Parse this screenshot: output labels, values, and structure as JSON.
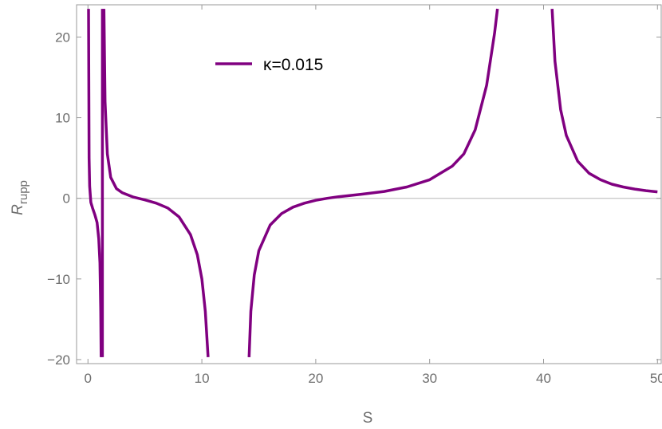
{
  "chart_data": {
    "type": "line",
    "xlabel": "S",
    "ylabel_main": "R",
    "ylabel_sub": "rupp",
    "xlim": [
      -1,
      50.4
    ],
    "ylim": [
      -20.5,
      24
    ],
    "x_ticks": [
      0,
      10,
      20,
      30,
      40,
      50
    ],
    "x_tick_labels": [
      "0",
      "10",
      "20",
      "30",
      "40",
      "50"
    ],
    "y_ticks": [
      -20,
      -10,
      0,
      10,
      20
    ],
    "y_tick_labels": [
      "−20",
      "−10",
      "0",
      "10",
      "20"
    ],
    "zero_line": true,
    "grid": false,
    "legend_position": "top-center",
    "series": [
      {
        "name": "κ=0.015",
        "color": "#800080",
        "segments": [
          [
            [
              0.05,
              23.5
            ],
            [
              0.1,
              5
            ],
            [
              0.15,
              1.5
            ],
            [
              0.25,
              -0.5
            ],
            [
              0.4,
              -1.2
            ],
            [
              0.6,
              -2.0
            ],
            [
              0.8,
              -3.0
            ],
            [
              0.95,
              -5.0
            ],
            [
              1.05,
              -8.0
            ],
            [
              1.12,
              -14.0
            ],
            [
              1.16,
              -19.7
            ]
          ],
          [
            [
              1.27,
              -19.7
            ],
            [
              1.27,
              0
            ],
            [
              1.27,
              23.5
            ]
          ],
          [
            [
              1.4,
              23.5
            ],
            [
              1.5,
              12.0
            ],
            [
              1.7,
              5.5
            ],
            [
              2.0,
              2.6
            ],
            [
              2.5,
              1.2
            ],
            [
              3.0,
              0.7
            ],
            [
              4.0,
              0.15
            ],
            [
              5.0,
              -0.2
            ],
            [
              6.0,
              -0.6
            ],
            [
              7.0,
              -1.2
            ],
            [
              8.0,
              -2.3
            ],
            [
              9.0,
              -4.5
            ],
            [
              9.6,
              -7.0
            ],
            [
              10.0,
              -10.0
            ],
            [
              10.3,
              -14.0
            ],
            [
              10.55,
              -19.7
            ]
          ],
          [
            [
              14.15,
              -19.7
            ],
            [
              14.3,
              -14.0
            ],
            [
              14.6,
              -9.5
            ],
            [
              15.0,
              -6.5
            ],
            [
              16.0,
              -3.3
            ],
            [
              17.0,
              -1.9
            ],
            [
              18.0,
              -1.1
            ],
            [
              19.0,
              -0.6
            ],
            [
              20.0,
              -0.25
            ],
            [
              21.0,
              0.0
            ],
            [
              22.0,
              0.2
            ],
            [
              24.0,
              0.5
            ],
            [
              26.0,
              0.85
            ],
            [
              28.0,
              1.4
            ],
            [
              30.0,
              2.3
            ],
            [
              32.0,
              4.0
            ],
            [
              33.0,
              5.5
            ],
            [
              34.0,
              8.5
            ],
            [
              35.0,
              14.0
            ],
            [
              35.7,
              20.5
            ],
            [
              35.95,
              23.5
            ]
          ],
          [
            [
              40.75,
              23.5
            ],
            [
              41.0,
              17.0
            ],
            [
              41.5,
              11.0
            ],
            [
              42.0,
              7.8
            ],
            [
              43.0,
              4.6
            ],
            [
              44.0,
              3.1
            ],
            [
              45.0,
              2.3
            ],
            [
              46.0,
              1.75
            ],
            [
              47.0,
              1.4
            ],
            [
              48.0,
              1.15
            ],
            [
              49.0,
              0.95
            ],
            [
              50.0,
              0.8
            ]
          ]
        ]
      }
    ]
  }
}
